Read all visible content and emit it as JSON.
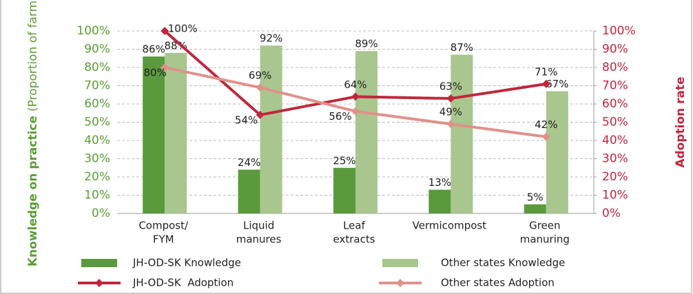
{
  "chart_data": {
    "type": "bar-line",
    "categories": [
      [
        "Compost/",
        "FYM"
      ],
      [
        "Liquid",
        "manures"
      ],
      [
        "Leaf",
        "extracts"
      ],
      [
        "Vermicompost"
      ],
      [
        "Green",
        "manuring"
      ]
    ],
    "ylabel": [
      "Knowledge on practice",
      "(Proportion of farmers)"
    ],
    "y2label": "Adoption rate",
    "ylim": [
      0,
      100
    ],
    "yticks": [
      {
        "value": 0,
        "label": "0%"
      },
      {
        "value": 10,
        "label": "10%"
      },
      {
        "value": 20,
        "label": "20%"
      },
      {
        "value": 30,
        "label": "30%"
      },
      {
        "value": 40,
        "label": "40%"
      },
      {
        "value": 50,
        "label": "50%"
      },
      {
        "value": 60,
        "label": "60%"
      },
      {
        "value": 70,
        "label": "70%"
      },
      {
        "value": 80,
        "label": "80%"
      },
      {
        "value": 90,
        "label": "90%"
      },
      {
        "value": 100,
        "label": "100%"
      }
    ],
    "y2lim": [
      0,
      100
    ],
    "y2ticks": [
      {
        "value": 0,
        "label": "0%"
      },
      {
        "value": 10,
        "label": "10%"
      },
      {
        "value": 20,
        "label": "20%"
      },
      {
        "value": 30,
        "label": "30%"
      },
      {
        "value": 40,
        "label": "40%"
      },
      {
        "value": 50,
        "label": "50%"
      },
      {
        "value": 60,
        "label": "60%"
      },
      {
        "value": 70,
        "label": "70%"
      },
      {
        "value": 80,
        "label": "80%"
      },
      {
        "value": 90,
        "label": "90%"
      },
      {
        "value": 100,
        "label": "100%"
      }
    ],
    "series": [
      {
        "name": "JH-OD-SK Knowledge",
        "kind": "bar",
        "color": "#5a9a3c",
        "values": [
          86,
          24,
          25,
          13,
          5
        ],
        "value_labels": [
          "86%",
          "24%",
          "25%",
          "13%",
          "5%"
        ]
      },
      {
        "name": "Other states Knowledge",
        "kind": "bar",
        "color": "#a8c68e",
        "values": [
          88,
          92,
          89,
          87,
          67
        ],
        "value_labels": [
          "88%",
          "92%",
          "89%",
          "87%",
          "67%"
        ]
      },
      {
        "name": "JH-OD-SK  Adoption",
        "kind": "line",
        "axis": "y2",
        "color": "#c0273d",
        "values": [
          100,
          54,
          64,
          63,
          71
        ],
        "value_labels": [
          "100%",
          "54%",
          "64%",
          "63%",
          "71%"
        ]
      },
      {
        "name": "Other states Adoption",
        "kind": "line",
        "axis": "y2",
        "color": "#e0918a",
        "values": [
          80,
          69,
          56,
          49,
          42
        ],
        "value_labels": [
          "80%",
          "69%",
          "56%",
          "49%",
          "42%"
        ]
      }
    ]
  }
}
